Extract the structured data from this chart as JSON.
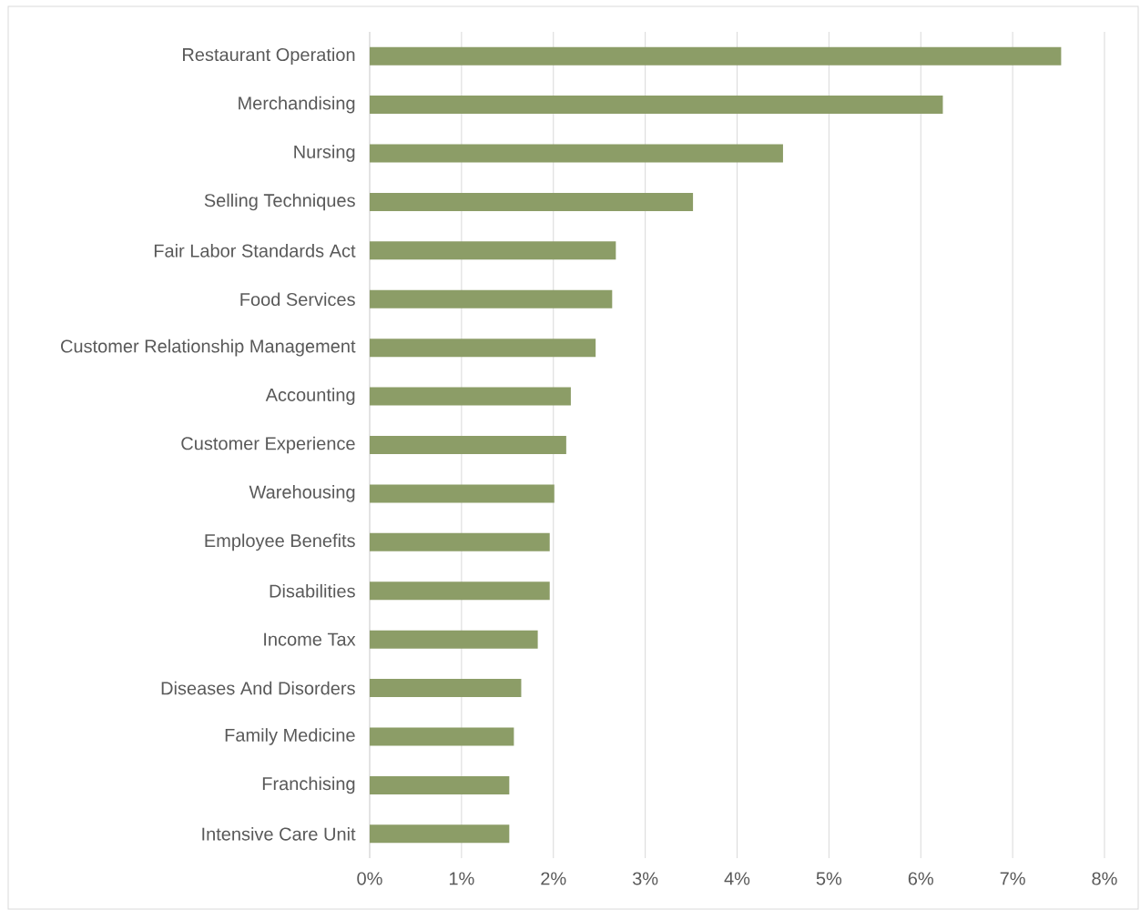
{
  "chart_data": {
    "type": "bar",
    "orientation": "horizontal",
    "categories": [
      "Restaurant Operation",
      "Merchandising",
      "Nursing",
      "Selling Techniques",
      "Fair Labor Standards Act",
      "Food Services",
      "Customer Relationship Management",
      "Accounting",
      "Customer Experience",
      "Warehousing",
      "Employee Benefits",
      "Disabilities",
      "Income Tax",
      "Diseases And Disorders",
      "Family Medicine",
      "Franchising",
      "Intensive Care Unit"
    ],
    "values": [
      7.53,
      6.24,
      4.5,
      3.52,
      2.68,
      2.64,
      2.46,
      2.19,
      2.14,
      2.01,
      1.96,
      1.96,
      1.83,
      1.65,
      1.57,
      1.52,
      1.52
    ],
    "color": "#8c9d67",
    "xlim": [
      0,
      8
    ],
    "xticks": [
      {
        "value": 0,
        "label": "0%"
      },
      {
        "value": 1,
        "label": "1%"
      },
      {
        "value": 2,
        "label": "2%"
      },
      {
        "value": 3,
        "label": "3%"
      },
      {
        "value": 4,
        "label": "4%"
      },
      {
        "value": 5,
        "label": "5%"
      },
      {
        "value": 6,
        "label": "6%"
      },
      {
        "value": 7,
        "label": "7%"
      },
      {
        "value": 8,
        "label": "8%"
      }
    ],
    "grid": "x"
  }
}
